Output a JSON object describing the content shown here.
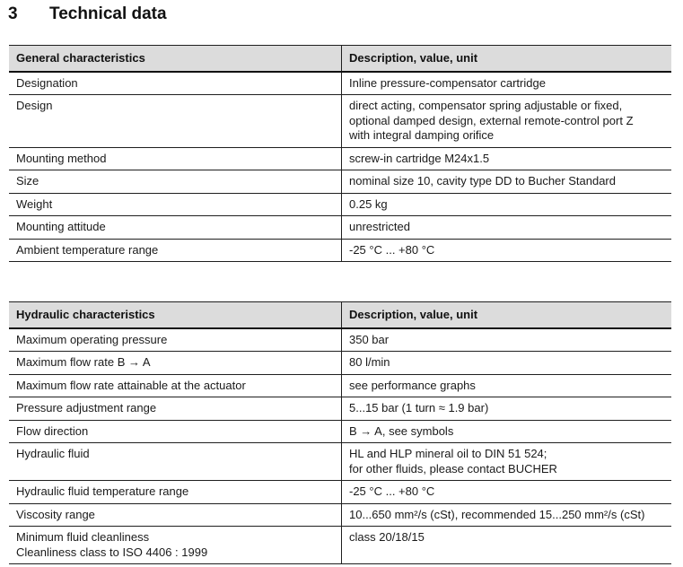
{
  "page": {
    "heading_number": "3",
    "heading_title": "Technical data"
  },
  "colors": {
    "header_row_bg": "#dcdcdc",
    "border": "#1f1f1f",
    "text": "#1a1a1a"
  },
  "tables": {
    "general": {
      "header": {
        "col1": "General characteristics",
        "col2": "Description, value, unit"
      },
      "rows": [
        {
          "label": "Designation",
          "value": "Inline pressure-compensator cartridge"
        },
        {
          "label": "Design",
          "value": "direct acting, compensator spring adjustable or fixed,\noptional damped design, external remote-control port Z\nwith integral damping orifice"
        },
        {
          "label": "Mounting method",
          "value": "screw-in cartridge M24x1.5"
        },
        {
          "label": "Size",
          "value": "nominal size 10, cavity type DD to Bucher Standard"
        },
        {
          "label": "Weight",
          "value": "0.25 kg"
        },
        {
          "label": "Mounting attitude",
          "value": "unrestricted"
        },
        {
          "label": "Ambient temperature range",
          "value": "-25 °C ... +80 °C"
        }
      ]
    },
    "hydraulic": {
      "header": {
        "col1": "Hydraulic characteristics",
        "col2": "Description, value, unit"
      },
      "rows": [
        {
          "label": "Maximum operating pressure",
          "value": "350 bar"
        },
        {
          "label": "Maximum flow rate B → A",
          "value": "80 l/min"
        },
        {
          "label": "Maximum flow rate attainable at the actuator",
          "value": "see performance graphs"
        },
        {
          "label": "Pressure adjustment range",
          "value": "5...15 bar  (1 turn ≈ 1.9 bar)"
        },
        {
          "label": "Flow direction",
          "value": "B → A,  see symbols"
        },
        {
          "label": "Hydraulic fluid",
          "value": "HL and HLP mineral oil to DIN 51 524;\nfor other fluids, please contact BUCHER"
        },
        {
          "label": "Hydraulic fluid temperature range",
          "value": "-25 °C ... +80 °C"
        },
        {
          "label": "Viscosity range",
          "value": "10...650 mm²/s (cSt), recommended 15...250 mm²/s (cSt)"
        },
        {
          "label": "Minimum fluid cleanliness\nCleanliness class to ISO 4406 : 1999",
          "value": "class 20/18/15"
        }
      ]
    }
  }
}
